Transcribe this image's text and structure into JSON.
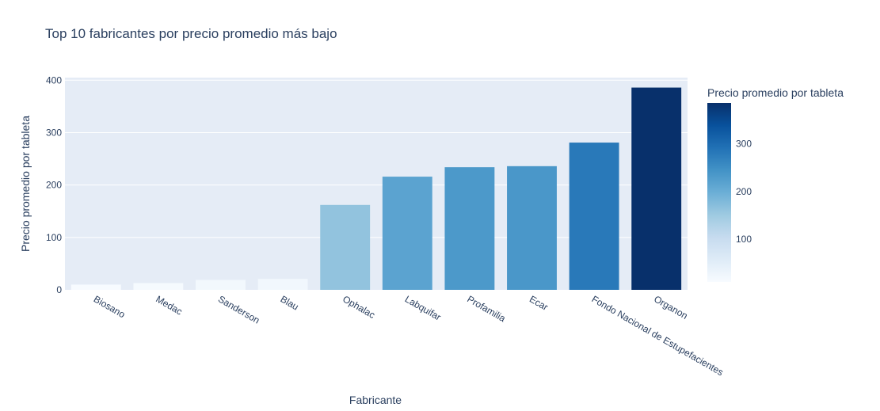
{
  "chart_data": {
    "type": "bar",
    "title": "Top 10 fabricantes por precio promedio más bajo",
    "xlabel": "Fabricante",
    "ylabel": "Precio promedio por tableta",
    "categories": [
      "Biosano",
      "Medac",
      "Sanderson",
      "Blau",
      "Ophalac",
      "Labquifar",
      "Profamilia",
      "Ecar",
      "Fondo Nacional de Estupefacientes",
      "Organon"
    ],
    "values": [
      10,
      13,
      19,
      21,
      162,
      216,
      234,
      236,
      281,
      386
    ],
    "ylim": [
      0,
      405
    ],
    "yticks": [
      "0",
      "100",
      "200",
      "300",
      "400"
    ],
    "grid": true,
    "colorbar": {
      "title": "Precio promedio por tableta",
      "ticks": [
        "100",
        "200",
        "300"
      ],
      "range": [
        10,
        386
      ],
      "scale": [
        "#f7fbff",
        "#deebf7",
        "#c6dbef",
        "#9ecae1",
        "#6baed6",
        "#4292c6",
        "#2171b5",
        "#08519c",
        "#08306b"
      ]
    }
  }
}
